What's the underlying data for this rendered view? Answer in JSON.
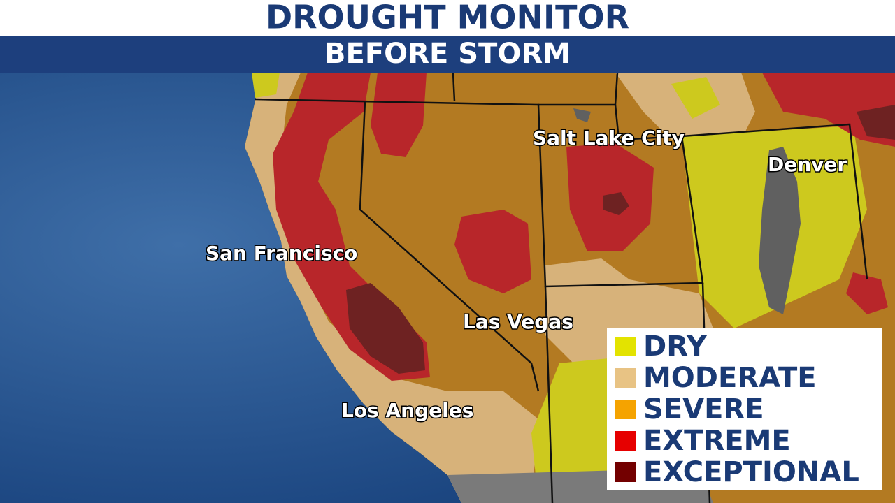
{
  "header": {
    "title": "DROUGHT MONITOR",
    "subtitle": "BEFORE STORM"
  },
  "cities": [
    {
      "label": "Salt Lake City"
    },
    {
      "label": "Denver"
    },
    {
      "label": "San Francisco"
    },
    {
      "label": "Las Vegas"
    },
    {
      "label": "Los Angeles"
    }
  ],
  "legend": {
    "items": [
      {
        "label": "DRY",
        "color": "#e3e300"
      },
      {
        "label": "MODERATE",
        "color": "#e8c384"
      },
      {
        "label": "SEVERE",
        "color": "#f5a300"
      },
      {
        "label": "EXTREME",
        "color": "#e60000"
      },
      {
        "label": "EXCEPTIONAL",
        "color": "#730000"
      }
    ]
  }
}
